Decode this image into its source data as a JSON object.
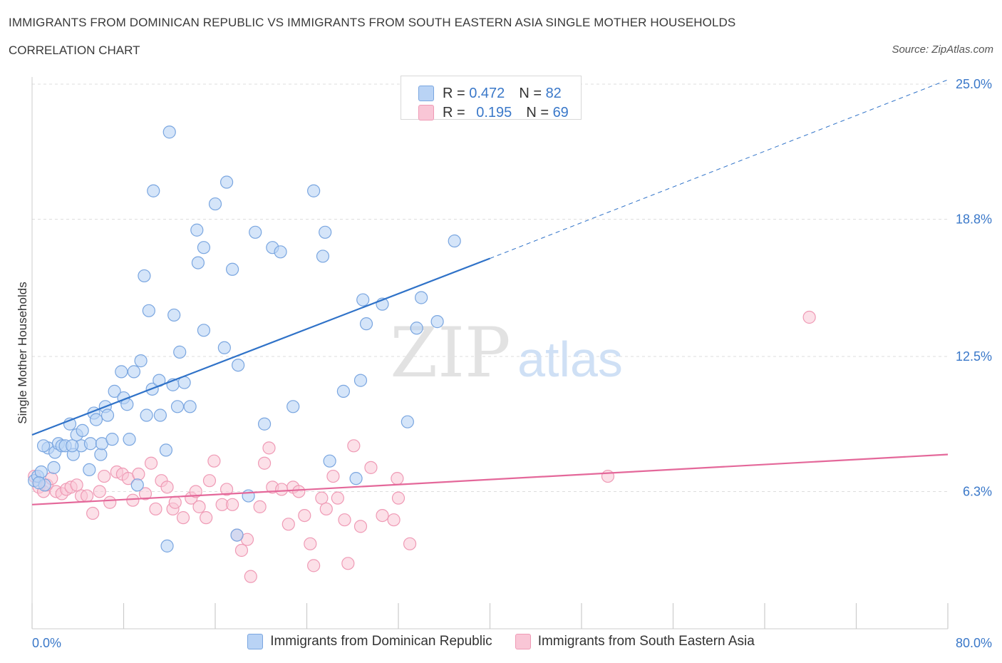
{
  "title": "IMMIGRANTS FROM DOMINICAN REPUBLIC VS IMMIGRANTS FROM SOUTH EASTERN ASIA SINGLE MOTHER HOUSEHOLDS",
  "subtitle": "CORRELATION CHART",
  "source": "Source: ZipAtlas.com",
  "watermark": {
    "zip": "ZIP",
    "atlas": "atlas"
  },
  "stats": [
    {
      "r_label": "R =",
      "r_value": "0.472",
      "n_label": "N =",
      "n_value": "82"
    },
    {
      "r_label": "R =",
      "r_value": "0.195",
      "n_label": "N =",
      "n_value": "69"
    }
  ],
  "colors": {
    "blue_fill": "#b9d3f5",
    "blue_stroke": "#7aa6e0",
    "blue_line": "#2f72c8",
    "pink_fill": "#f9c6d6",
    "pink_stroke": "#ef9ab5",
    "pink_line": "#e4689a",
    "tick_label": "#3a78c9",
    "grid": "#dddddd"
  },
  "chart_data": {
    "type": "scatter",
    "xlabel": "",
    "ylabel": "Single Mother Households",
    "xlim": [
      0,
      80
    ],
    "ylim": [
      0,
      25
    ],
    "x_tick_labels": [
      "0.0%",
      "80.0%"
    ],
    "y_ticks": [
      6.3,
      12.5,
      18.8,
      25.0
    ],
    "y_tick_labels": [
      "6.3%",
      "12.5%",
      "18.8%",
      "25.0%"
    ],
    "grid": true,
    "legend_position": "bottom",
    "series": [
      {
        "name": "Immigrants from Dominican Republic",
        "color": "#b9d3f5",
        "trend": {
          "x0": 0,
          "y0": 8.9,
          "x1": 40,
          "y1": 17.0,
          "dashed_to_x": 80,
          "dashed_to_y": 25.2
        },
        "points": [
          [
            0.2,
            6.8
          ],
          [
            0.5,
            7.0
          ],
          [
            0.8,
            7.2
          ],
          [
            1.1,
            6.6
          ],
          [
            1.4,
            8.3
          ],
          [
            1.9,
            7.4
          ],
          [
            2.0,
            8.1
          ],
          [
            2.3,
            8.5
          ],
          [
            2.6,
            8.4
          ],
          [
            2.9,
            8.4
          ],
          [
            3.3,
            9.4
          ],
          [
            3.6,
            8.0
          ],
          [
            3.9,
            8.9
          ],
          [
            4.3,
            8.4
          ],
          [
            4.4,
            9.1
          ],
          [
            5.0,
            7.3
          ],
          [
            5.1,
            8.5
          ],
          [
            5.4,
            9.9
          ],
          [
            5.6,
            9.6
          ],
          [
            6.0,
            8.0
          ],
          [
            6.1,
            8.5
          ],
          [
            6.4,
            10.2
          ],
          [
            6.6,
            9.8
          ],
          [
            7.0,
            8.7
          ],
          [
            7.2,
            10.9
          ],
          [
            7.8,
            11.8
          ],
          [
            8.0,
            10.6
          ],
          [
            8.3,
            10.3
          ],
          [
            8.5,
            8.7
          ],
          [
            8.9,
            11.8
          ],
          [
            9.2,
            6.6
          ],
          [
            9.5,
            12.3
          ],
          [
            9.8,
            16.2
          ],
          [
            10.0,
            9.8
          ],
          [
            10.2,
            14.6
          ],
          [
            10.5,
            11.0
          ],
          [
            10.6,
            20.1
          ],
          [
            11.1,
            11.4
          ],
          [
            11.2,
            9.8
          ],
          [
            11.7,
            8.2
          ],
          [
            11.8,
            3.8
          ],
          [
            12.0,
            22.8
          ],
          [
            12.3,
            11.2
          ],
          [
            12.4,
            14.4
          ],
          [
            12.7,
            10.2
          ],
          [
            12.9,
            12.7
          ],
          [
            13.3,
            11.3
          ],
          [
            13.8,
            10.2
          ],
          [
            14.4,
            18.3
          ],
          [
            14.5,
            16.8
          ],
          [
            15.0,
            17.5
          ],
          [
            15.0,
            13.7
          ],
          [
            16.0,
            19.5
          ],
          [
            16.8,
            12.9
          ],
          [
            17.0,
            20.5
          ],
          [
            17.5,
            16.5
          ],
          [
            17.9,
            4.3
          ],
          [
            18.0,
            12.1
          ],
          [
            18.9,
            6.1
          ],
          [
            19.5,
            18.2
          ],
          [
            20.3,
            9.4
          ],
          [
            21.0,
            17.5
          ],
          [
            21.7,
            17.3
          ],
          [
            22.8,
            10.2
          ],
          [
            24.6,
            20.1
          ],
          [
            25.4,
            17.1
          ],
          [
            25.6,
            18.2
          ],
          [
            26.0,
            7.7
          ],
          [
            27.2,
            10.9
          ],
          [
            28.3,
            6.9
          ],
          [
            28.7,
            11.4
          ],
          [
            28.9,
            15.1
          ],
          [
            29.2,
            14.0
          ],
          [
            30.6,
            14.9
          ],
          [
            32.8,
            9.5
          ],
          [
            33.6,
            13.8
          ],
          [
            34.0,
            15.2
          ],
          [
            35.4,
            14.1
          ],
          [
            36.9,
            17.8
          ],
          [
            0.6,
            6.7
          ],
          [
            1.0,
            8.4
          ],
          [
            3.5,
            8.4
          ]
        ]
      },
      {
        "name": "Immigrants from South Eastern Asia",
        "color": "#f9c6d6",
        "trend": {
          "x0": 0,
          "y0": 5.7,
          "x1": 80,
          "y1": 8.0
        },
        "points": [
          [
            0.2,
            7.0
          ],
          [
            0.6,
            6.5
          ],
          [
            1.0,
            6.3
          ],
          [
            1.3,
            6.6
          ],
          [
            1.7,
            6.9
          ],
          [
            2.1,
            6.3
          ],
          [
            2.6,
            6.2
          ],
          [
            3.0,
            6.4
          ],
          [
            3.4,
            6.5
          ],
          [
            3.9,
            6.6
          ],
          [
            4.3,
            6.1
          ],
          [
            4.8,
            6.1
          ],
          [
            5.3,
            5.3
          ],
          [
            5.9,
            6.3
          ],
          [
            6.3,
            7.0
          ],
          [
            6.8,
            5.8
          ],
          [
            7.4,
            7.2
          ],
          [
            7.9,
            7.1
          ],
          [
            8.4,
            6.9
          ],
          [
            8.8,
            5.9
          ],
          [
            9.3,
            7.1
          ],
          [
            9.9,
            6.2
          ],
          [
            10.4,
            7.6
          ],
          [
            10.8,
            5.5
          ],
          [
            11.3,
            6.8
          ],
          [
            11.8,
            6.5
          ],
          [
            12.3,
            5.5
          ],
          [
            12.5,
            5.8
          ],
          [
            13.2,
            5.1
          ],
          [
            13.9,
            6.0
          ],
          [
            14.3,
            6.3
          ],
          [
            14.6,
            5.6
          ],
          [
            15.2,
            5.1
          ],
          [
            15.5,
            6.8
          ],
          [
            15.9,
            7.7
          ],
          [
            16.6,
            5.7
          ],
          [
            17.0,
            6.4
          ],
          [
            17.5,
            5.7
          ],
          [
            17.9,
            4.3
          ],
          [
            18.3,
            3.6
          ],
          [
            18.8,
            4.1
          ],
          [
            19.1,
            2.4
          ],
          [
            19.9,
            5.6
          ],
          [
            20.3,
            7.6
          ],
          [
            20.7,
            8.3
          ],
          [
            21.0,
            6.5
          ],
          [
            21.8,
            6.4
          ],
          [
            22.4,
            4.8
          ],
          [
            22.8,
            6.5
          ],
          [
            23.3,
            6.3
          ],
          [
            23.8,
            5.2
          ],
          [
            24.3,
            3.9
          ],
          [
            24.6,
            2.9
          ],
          [
            25.3,
            6.0
          ],
          [
            25.7,
            5.5
          ],
          [
            26.3,
            7.0
          ],
          [
            26.7,
            6.0
          ],
          [
            27.3,
            5.0
          ],
          [
            27.6,
            3.0
          ],
          [
            28.1,
            8.4
          ],
          [
            28.7,
            4.7
          ],
          [
            29.6,
            7.4
          ],
          [
            30.6,
            5.2
          ],
          [
            31.6,
            5.0
          ],
          [
            31.9,
            6.9
          ],
          [
            32.0,
            6.0
          ],
          [
            33.0,
            3.9
          ],
          [
            50.3,
            7.0
          ],
          [
            67.9,
            14.3
          ]
        ]
      }
    ]
  },
  "bottom_legend": [
    {
      "label": "Immigrants from Dominican Republic"
    },
    {
      "label": "Immigrants from South Eastern Asia"
    }
  ]
}
